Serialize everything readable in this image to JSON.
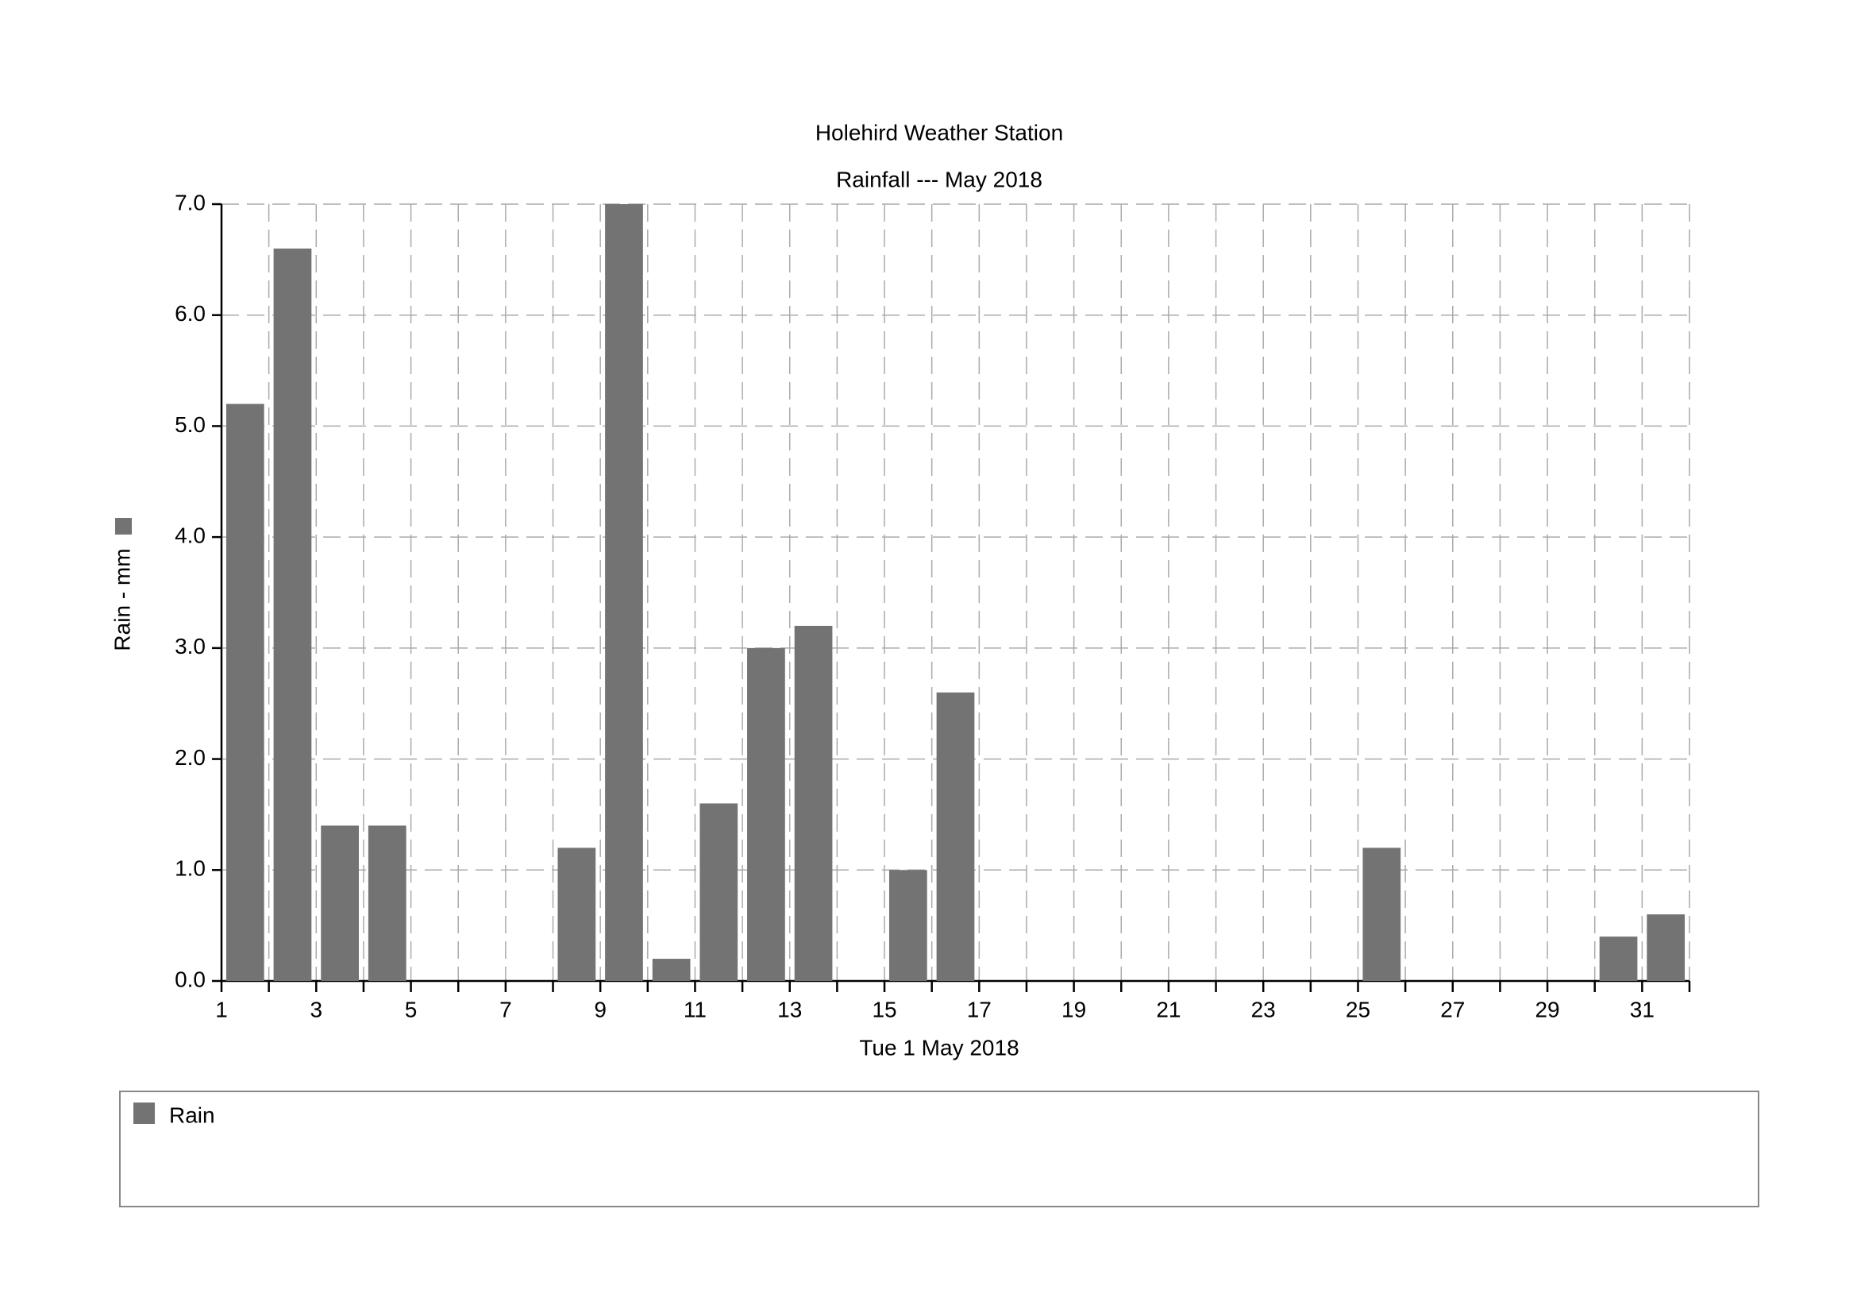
{
  "chart_data": {
    "type": "bar",
    "title": "Holehird Weather Station",
    "subtitle": "Rainfall --- May 2018",
    "x_label": "Tue 1 May 2018",
    "y_label": "Rain - mm",
    "x": [
      1,
      2,
      3,
      4,
      5,
      6,
      7,
      8,
      9,
      10,
      11,
      12,
      13,
      14,
      15,
      16,
      17,
      18,
      19,
      20,
      21,
      22,
      23,
      24,
      25,
      26,
      27,
      28,
      29,
      30,
      31
    ],
    "series": [
      {
        "name": "Rain",
        "color": "#737373",
        "values": [
          5.2,
          6.6,
          1.4,
          1.4,
          0,
          0,
          0,
          1.2,
          7.0,
          0.2,
          1.6,
          3.0,
          3.2,
          0,
          1.0,
          2.6,
          0,
          0,
          0,
          0,
          0,
          0,
          0,
          0,
          1.2,
          0,
          0,
          0,
          0,
          0.4,
          0.6
        ]
      }
    ],
    "xlim": [
      1,
      32
    ],
    "xticks": [
      1,
      3,
      5,
      7,
      9,
      11,
      13,
      15,
      17,
      19,
      21,
      23,
      25,
      27,
      29,
      31
    ],
    "ylim": [
      0,
      7
    ],
    "yticks": [
      {
        "value": 0,
        "label": "0.0"
      },
      {
        "value": 1,
        "label": "1.0"
      },
      {
        "value": 2,
        "label": "2.0"
      },
      {
        "value": 3,
        "label": "3.0"
      },
      {
        "value": 4,
        "label": "4.0"
      },
      {
        "value": 5,
        "label": "5.0"
      },
      {
        "value": 6,
        "label": "6.0"
      },
      {
        "value": 7,
        "label": "7.0"
      }
    ],
    "grid": true,
    "legend": "bottom"
  }
}
